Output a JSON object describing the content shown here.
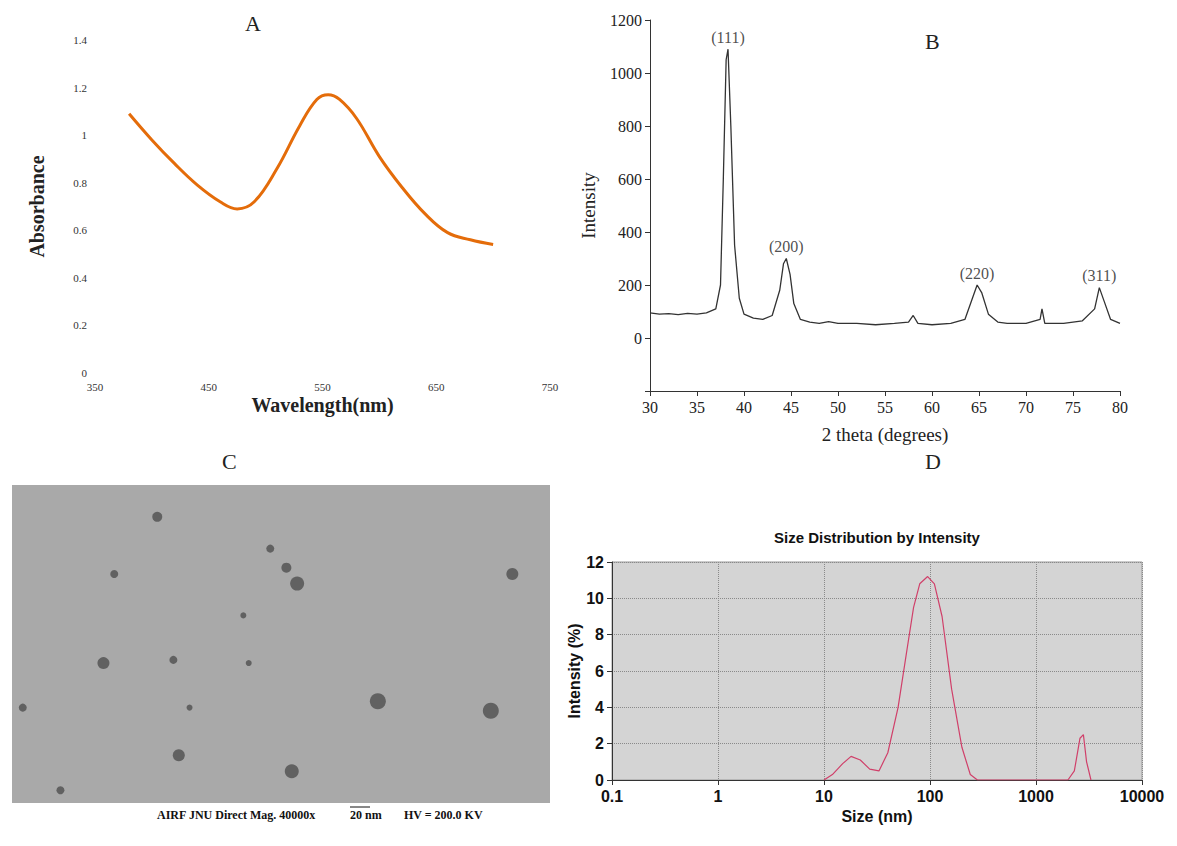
{
  "chart_data": [
    {
      "panel": "A",
      "type": "line",
      "xlabel": "Wavelength(nm)",
      "ylabel": "Absorbance",
      "x": [
        380,
        400,
        420,
        440,
        460,
        475,
        490,
        510,
        530,
        545,
        555,
        565,
        580,
        600,
        620,
        640,
        660,
        680,
        700
      ],
      "values": [
        1.09,
        0.98,
        0.88,
        0.79,
        0.72,
        0.69,
        0.72,
        0.86,
        1.04,
        1.15,
        1.17,
        1.15,
        1.07,
        0.91,
        0.78,
        0.67,
        0.59,
        0.56,
        0.54
      ],
      "color": "#e46c0a",
      "xlim": [
        350,
        750
      ],
      "xticks": [
        350,
        450,
        550,
        650,
        750
      ],
      "ylim": [
        0,
        1.4
      ],
      "yticks": [
        0,
        0.2,
        0.4,
        0.6,
        0.8,
        1,
        1.2,
        1.4
      ],
      "grid": false
    },
    {
      "panel": "B",
      "type": "line",
      "xlabel": "2 theta (degrees)",
      "ylabel": "Intensity",
      "x": [
        30,
        31,
        32,
        33,
        34,
        35,
        36,
        37,
        37.5,
        37.8,
        38.1,
        38.3,
        38.6,
        39,
        39.5,
        40,
        41,
        42,
        43,
        43.8,
        44.2,
        44.5,
        44.9,
        45.3,
        46,
        47,
        48,
        49,
        50,
        52,
        54,
        56,
        57.5,
        58,
        58.5,
        60,
        62,
        63.5,
        64.3,
        64.8,
        65.3,
        66,
        67,
        68,
        70,
        71.5,
        71.7,
        72,
        74,
        76,
        77.3,
        77.8,
        78.3,
        79,
        80
      ],
      "values": [
        95,
        90,
        92,
        88,
        93,
        90,
        95,
        110,
        200,
        600,
        1050,
        1090,
        800,
        350,
        150,
        90,
        75,
        70,
        85,
        180,
        280,
        300,
        240,
        130,
        70,
        60,
        55,
        62,
        55,
        55,
        50,
        55,
        60,
        85,
        55,
        50,
        55,
        70,
        150,
        200,
        170,
        90,
        60,
        55,
        55,
        70,
        110,
        55,
        55,
        65,
        110,
        190,
        140,
        70,
        55
      ],
      "color": "#333333",
      "xlim": [
        30,
        80
      ],
      "xticks": [
        30,
        35,
        40,
        45,
        50,
        55,
        60,
        65,
        70,
        75,
        80
      ],
      "ylim": [
        -200,
        1200
      ],
      "yticks": [
        0,
        200,
        400,
        600,
        800,
        1000,
        1200
      ],
      "annotations": [
        {
          "text": "(111)",
          "x": 38.3,
          "y": 1090
        },
        {
          "text": "(200)",
          "x": 44.5,
          "y": 300
        },
        {
          "text": "(220)",
          "x": 64.8,
          "y": 200
        },
        {
          "text": "(311)",
          "x": 77.8,
          "y": 190
        }
      ],
      "grid": false
    },
    {
      "panel": "C",
      "type": "image",
      "caption": "AIRF JNU Direct Mag. 40000x",
      "scale_bar": "20 nm",
      "voltage": "HV = 200.0 KV"
    },
    {
      "panel": "D",
      "type": "line",
      "title": "Size Distribution by Intensity",
      "xlabel": "Size (nm)",
      "ylabel": "Intensity (%)",
      "log": "x",
      "x": [
        10,
        12,
        15,
        18,
        22,
        27,
        33,
        40,
        50,
        60,
        70,
        80,
        95,
        110,
        130,
        160,
        200,
        240,
        280,
        1500,
        2000,
        2300,
        2600,
        2800,
        3000,
        3300
      ],
      "values": [
        0,
        0.3,
        0.9,
        1.3,
        1.1,
        0.6,
        0.5,
        1.5,
        4,
        7,
        9.5,
        10.8,
        11.2,
        10.8,
        9,
        5,
        1.8,
        0.3,
        0,
        0,
        0,
        0.5,
        2.3,
        2.5,
        1,
        0
      ],
      "color": "#d0406a",
      "xlim": [
        0.1,
        10000
      ],
      "xticks": [
        0.1,
        1,
        10,
        100,
        1000,
        10000
      ],
      "ylim": [
        0,
        12
      ],
      "yticks": [
        0,
        2,
        4,
        6,
        8,
        10,
        12
      ],
      "grid": true
    }
  ]
}
